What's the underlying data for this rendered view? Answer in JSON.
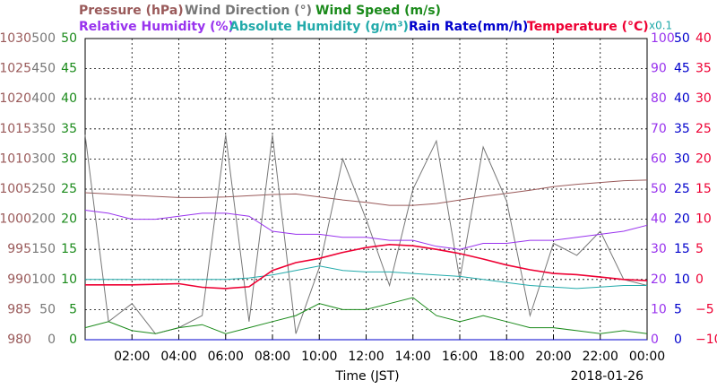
{
  "chart_data": {
    "type": "line",
    "x_label": "Time (JST)",
    "date": "2018-01-26",
    "scale_note": "x0.1",
    "xlim": [
      0,
      24
    ],
    "xticks": [
      {
        "value": 2,
        "label": "02:00"
      },
      {
        "value": 4,
        "label": "04:00"
      },
      {
        "value": 6,
        "label": "06:00"
      },
      {
        "value": 8,
        "label": "08:00"
      },
      {
        "value": 10,
        "label": "10:00"
      },
      {
        "value": 12,
        "label": "12:00"
      },
      {
        "value": 14,
        "label": "14:00"
      },
      {
        "value": 16,
        "label": "16:00"
      },
      {
        "value": 18,
        "label": "18:00"
      },
      {
        "value": 20,
        "label": "20:00"
      },
      {
        "value": 22,
        "label": "22:00"
      },
      {
        "value": 24,
        "label": "00:00"
      }
    ],
    "grid": true,
    "x": [
      0,
      1,
      2,
      3,
      4,
      5,
      6,
      7,
      8,
      9,
      10,
      11,
      12,
      13,
      14,
      15,
      16,
      17,
      18,
      19,
      20,
      21,
      22,
      23,
      24
    ],
    "y_axes": [
      {
        "lim": [
          980,
          1030
        ],
        "ticks": [
          980,
          985,
          990,
          995,
          1000,
          1005,
          1010,
          1015,
          1020,
          1025,
          1030
        ],
        "color": "#9a5a5a"
      },
      {
        "lim": [
          0,
          500
        ],
        "ticks": [
          0,
          50,
          100,
          150,
          200,
          250,
          300,
          350,
          400,
          450,
          500
        ],
        "color": "#777777"
      },
      {
        "lim": [
          0,
          50
        ],
        "ticks": [
          0,
          5,
          10,
          15,
          20,
          25,
          30,
          35,
          40,
          45,
          50
        ],
        "color": "#1a8a1a"
      },
      {
        "lim": [
          0,
          100
        ],
        "ticks": [
          0,
          10,
          20,
          30,
          40,
          50,
          60,
          70,
          80,
          90,
          100
        ],
        "color": "#9933ee"
      },
      {
        "lim": [
          0,
          50
        ],
        "ticks": [
          0,
          5,
          10,
          15,
          20,
          25,
          30,
          35,
          40,
          45,
          50
        ],
        "color": "#0000cc"
      },
      {
        "lim": [
          -10,
          40
        ],
        "ticks": [
          {
            "value": -10,
            "label": "−10"
          },
          {
            "value": -5,
            "label": "−5"
          },
          0,
          5,
          10,
          15,
          20,
          25,
          30,
          35,
          40
        ],
        "color": "#ee0033"
      },
      {
        "lim": [
          0,
          10
        ],
        "ticks": [],
        "color": "#22aaaa"
      }
    ],
    "series": [
      {
        "name": "Pressure (hPa)",
        "axis": 0,
        "color": "#9a5a5a",
        "values": [
          1004.4,
          1004.2,
          1004,
          1003.8,
          1003.6,
          1003.6,
          1003.7,
          1003.9,
          1004.1,
          1004.2,
          1003.7,
          1003.2,
          1002.8,
          1002.3,
          1002.3,
          1002.6,
          1003.2,
          1003.8,
          1004.3,
          1004.8,
          1005.4,
          1005.8,
          1006.1,
          1006.4,
          1006.5
        ]
      },
      {
        "name": "Wind Direction (°)",
        "axis": 1,
        "color": "#777777",
        "values": [
          340,
          30,
          60,
          10,
          20,
          40,
          340,
          30,
          340,
          10,
          120,
          300,
          200,
          90,
          250,
          330,
          100,
          320,
          230,
          40,
          160,
          140,
          180,
          100,
          90
        ]
      },
      {
        "name": "Wind Speed (m/s)",
        "axis": 2,
        "color": "#1a8a1a",
        "values": [
          2,
          3,
          1.5,
          1,
          2,
          2.5,
          1,
          2,
          3,
          4,
          6,
          5,
          5,
          6,
          7,
          4,
          3,
          4,
          3,
          2,
          2,
          1.5,
          1,
          1.5,
          1
        ]
      },
      {
        "name": "Relative Humidity (%)",
        "axis": 3,
        "color": "#9933ee",
        "values": [
          43,
          42,
          40,
          40,
          41,
          42,
          42,
          41,
          36,
          35,
          35,
          34,
          34,
          33,
          33,
          31,
          30,
          32,
          32,
          33,
          33,
          34,
          35,
          36,
          38
        ]
      },
      {
        "name": "Absolute Humidity (g/m³)",
        "axis": 6,
        "color": "#22aaaa",
        "values": [
          2.0,
          2.0,
          2.0,
          2.0,
          2.0,
          2.0,
          2.0,
          2.05,
          2.15,
          2.3,
          2.45,
          2.3,
          2.25,
          2.25,
          2.2,
          2.15,
          2.1,
          2.0,
          1.9,
          1.8,
          1.75,
          1.7,
          1.75,
          1.8,
          1.8
        ]
      },
      {
        "name": "Rain Rate(mm/h)",
        "axis": 4,
        "color": "#0000cc",
        "values": [
          0,
          0,
          0,
          0,
          0,
          0,
          0,
          0,
          0,
          0,
          0,
          0,
          0,
          0,
          0,
          0,
          0,
          0,
          0,
          0,
          0,
          0,
          0,
          0,
          0
        ]
      },
      {
        "name": "Temperature (°C)",
        "axis": 5,
        "color": "#ee0033",
        "values": [
          -0.9,
          -0.9,
          -0.9,
          -0.8,
          -0.7,
          -1.3,
          -1.5,
          -1.2,
          1.5,
          2.8,
          3.5,
          4.5,
          5.3,
          5.8,
          5.6,
          5.0,
          4.3,
          3.4,
          2.4,
          1.6,
          1.0,
          0.8,
          0.4,
          0.0,
          -0.2
        ]
      }
    ]
  }
}
